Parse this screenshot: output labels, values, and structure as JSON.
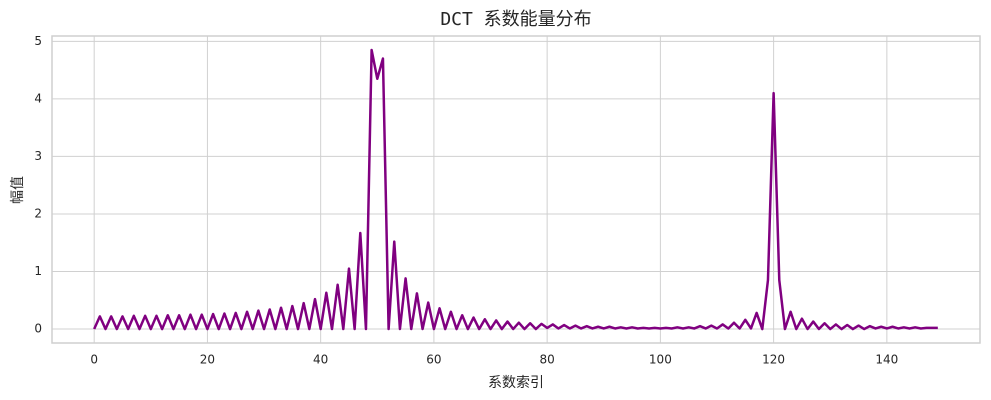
{
  "chart_data": {
    "type": "line",
    "title": "DCT 系数能量分布",
    "x_label": "系数索引",
    "y_label": "幅值",
    "x": [
      0,
      1,
      2,
      3,
      4,
      5,
      6,
      7,
      8,
      9,
      10,
      11,
      12,
      13,
      14,
      15,
      16,
      17,
      18,
      19,
      20,
      21,
      22,
      23,
      24,
      25,
      26,
      27,
      28,
      29,
      30,
      31,
      32,
      33,
      34,
      35,
      36,
      37,
      38,
      39,
      40,
      41,
      42,
      43,
      44,
      45,
      46,
      47,
      48,
      49,
      50,
      51,
      52,
      53,
      54,
      55,
      56,
      57,
      58,
      59,
      60,
      61,
      62,
      63,
      64,
      65,
      66,
      67,
      68,
      69,
      70,
      71,
      72,
      73,
      74,
      75,
      76,
      77,
      78,
      79,
      80,
      81,
      82,
      83,
      84,
      85,
      86,
      87,
      88,
      89,
      90,
      91,
      92,
      93,
      94,
      95,
      96,
      97,
      98,
      99,
      100,
      101,
      102,
      103,
      104,
      105,
      106,
      107,
      108,
      109,
      110,
      111,
      112,
      113,
      114,
      115,
      116,
      117,
      118,
      119,
      120,
      121,
      122,
      123,
      124,
      125,
      126,
      127,
      128,
      129,
      130,
      131,
      132,
      133,
      134,
      135,
      136,
      137,
      138,
      139,
      140,
      141,
      142,
      143,
      144,
      145,
      146,
      147,
      148,
      149
    ],
    "series": [
      {
        "name": "DCT",
        "color": "#800080",
        "values": [
          0,
          0.22,
          0,
          0.22,
          0,
          0.22,
          0,
          0.23,
          0,
          0.23,
          0,
          0.23,
          0,
          0.24,
          0,
          0.24,
          0,
          0.25,
          0,
          0.25,
          0,
          0.26,
          0,
          0.27,
          0,
          0.28,
          0,
          0.3,
          0,
          0.32,
          0,
          0.34,
          0,
          0.37,
          0,
          0.4,
          0,
          0.45,
          0,
          0.52,
          0,
          0.63,
          0,
          0.77,
          0,
          1.05,
          0,
          1.67,
          0,
          4.85,
          4.35,
          4.7,
          0,
          1.52,
          0,
          0.88,
          0,
          0.62,
          0,
          0.46,
          0,
          0.36,
          0,
          0.3,
          0,
          0.24,
          0,
          0.2,
          0,
          0.17,
          0,
          0.15,
          0,
          0.13,
          0,
          0.11,
          0,
          0.1,
          0,
          0.09,
          0.02,
          0.08,
          0.01,
          0.07,
          0.01,
          0.06,
          0.01,
          0.05,
          0.01,
          0.04,
          0.01,
          0.04,
          0.01,
          0.03,
          0.01,
          0.03,
          0.01,
          0.02,
          0.01,
          0.02,
          0.01,
          0.02,
          0.01,
          0.03,
          0.01,
          0.03,
          0.01,
          0.05,
          0.01,
          0.06,
          0.01,
          0.08,
          0.01,
          0.11,
          0.01,
          0.16,
          0.01,
          0.28,
          0,
          0.85,
          4.1,
          0.85,
          0,
          0.3,
          0,
          0.18,
          0,
          0.13,
          0,
          0.1,
          0,
          0.08,
          0,
          0.07,
          0,
          0.06,
          0,
          0.05,
          0.01,
          0.04,
          0.01,
          0.04,
          0.01,
          0.03,
          0.01,
          0.03,
          0.01,
          0.02,
          0.02,
          0.02
        ]
      }
    ],
    "xlim": [
      -7.45,
      156.45
    ],
    "ylim": [
      -0.2425,
      5.0925
    ],
    "xticks": [
      0,
      20,
      40,
      60,
      80,
      100,
      120,
      140
    ],
    "yticks": [
      0,
      1,
      2,
      3,
      4,
      5
    ],
    "grid": true
  }
}
